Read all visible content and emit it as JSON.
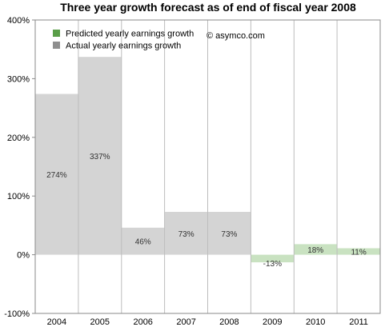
{
  "chart_data": {
    "type": "bar",
    "title": "Three year growth forecast as of end of fiscal year 2008",
    "xlabel": "",
    "ylabel": "",
    "categories": [
      "2004",
      "2005",
      "2006",
      "2007",
      "2008",
      "2009",
      "2010",
      "2011"
    ],
    "series": [
      {
        "name": "Actual yearly earnings growth",
        "color": "#d4d4d4",
        "values": [
          274,
          337,
          46,
          73,
          73,
          null,
          null,
          null
        ],
        "labels": [
          "274%",
          "337%",
          "46%",
          "73%",
          "73%",
          "",
          "",
          ""
        ]
      },
      {
        "name": "Predicted yearly earnings growth",
        "color": "#c9e2c1",
        "values": [
          null,
          null,
          null,
          null,
          null,
          -13,
          18,
          11
        ],
        "labels": [
          "",
          "",
          "",
          "",
          "",
          "-13%",
          "18%",
          "11%"
        ]
      }
    ],
    "ylim": [
      -100,
      400
    ],
    "yticks": [
      -100,
      0,
      100,
      200,
      300,
      400
    ],
    "ytick_labels": [
      "-100%",
      "0%",
      "100%",
      "200%",
      "300%",
      "400%"
    ],
    "grid": "vertical",
    "legend_position": "top-left",
    "legend_swatch_colors": {
      "Predicted yearly earnings growth": "#5a9e48",
      "Actual yearly earnings growth": "#8f8f8f"
    },
    "annotation": "© asymco.com"
  }
}
